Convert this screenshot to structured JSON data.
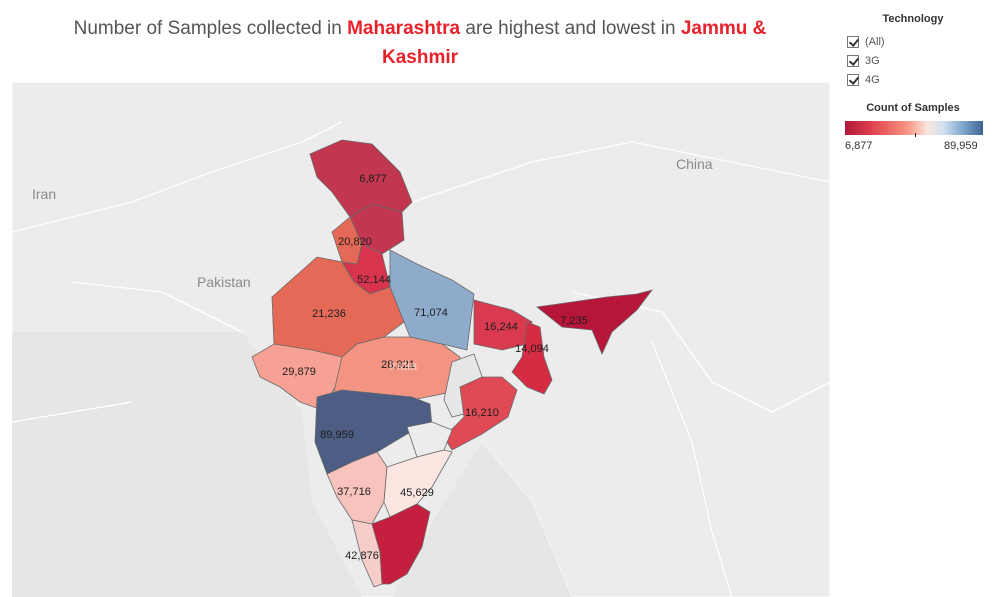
{
  "title": {
    "part1": "Number of Samples collected in ",
    "state_high": "Maharashtra",
    "part2": " are highest and lowest in ",
    "state_low_line1": "Jammu &",
    "state_low_line2": "Kashmir"
  },
  "map": {
    "country_labels": {
      "iran": "Iran",
      "pakistan": "Pakistan",
      "china": "China",
      "india_faded": "India"
    },
    "states": [
      {
        "name_key": "jammu-kashmir",
        "value": "6,877",
        "color": "#c23650"
      },
      {
        "name_key": "himachal",
        "value": "",
        "color": "#c23650"
      },
      {
        "name_key": "punjab",
        "value": "20,820",
        "color": "#e46956"
      },
      {
        "name_key": "haryana-delhi",
        "value": "52,144",
        "color": "#d9344e"
      },
      {
        "name_key": "uttar-pradesh",
        "value": "71,074",
        "color": "#8eabcc"
      },
      {
        "name_key": "rajasthan",
        "value": "21,236",
        "color": "#e46956"
      },
      {
        "name_key": "bihar",
        "value": "16,244",
        "color": "#da3a4f"
      },
      {
        "name_key": "west-bengal",
        "value": "14,094",
        "color": "#d62c43"
      },
      {
        "name_key": "assam",
        "value": "7,235",
        "color": "#b6163a"
      },
      {
        "name_key": "gujarat",
        "value": "29,879",
        "color": "#f7a194"
      },
      {
        "name_key": "madhya-pradesh",
        "value": "28,921",
        "color": "#f39482"
      },
      {
        "name_key": "odisha",
        "value": "16,210",
        "color": "#df4a55"
      },
      {
        "name_key": "maharashtra",
        "value": "89,959",
        "color": "#4d5d83"
      },
      {
        "name_key": "karnataka",
        "value": "37,716",
        "color": "#f7c3bc"
      },
      {
        "name_key": "andhra",
        "value": "45,629",
        "color": "#fbe6e2"
      },
      {
        "name_key": "kerala",
        "value": "42,876",
        "color": "#f6cdc8"
      },
      {
        "name_key": "tamil-nadu",
        "value": "",
        "color": "#c41f3f"
      }
    ]
  },
  "legend": {
    "technology_title": "Technology",
    "options": [
      "(All)",
      "3G",
      "4G"
    ],
    "count_title": "Count of Samples",
    "min_label": "6,877",
    "max_label": "89,959"
  }
}
